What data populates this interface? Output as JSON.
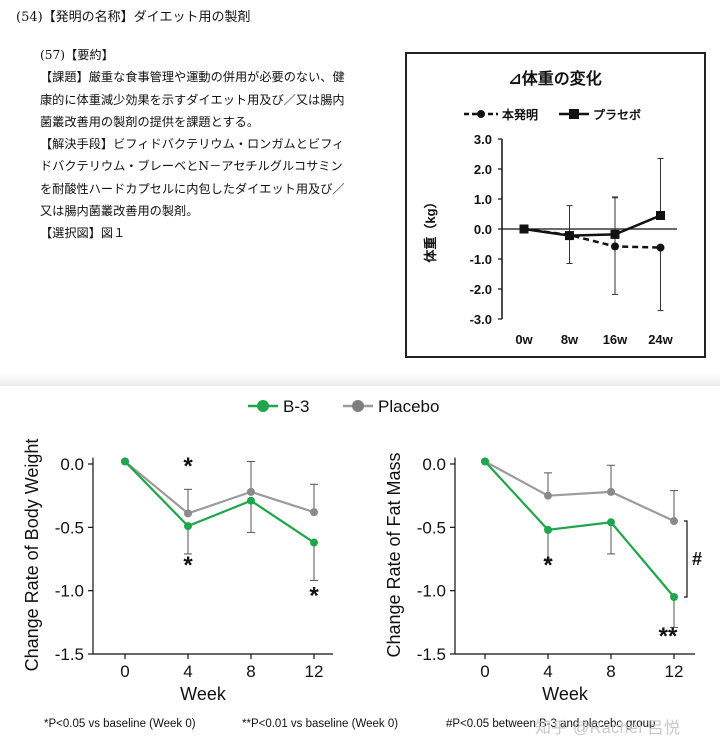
{
  "header": "(54)【発明の名称】ダイエット用の製剤",
  "abstract": {
    "lines": [
      "(57)【要約】",
      "【課題】厳重な食事管理や運動の併用が必要のない、健",
      "康的に体重減少効果を示すダイエット用及び／又は腸内",
      "菌叢改善用の製剤の提供を課題とする。",
      "【解決手段】ビフィドバクテリウム・ロンガムとビフィ",
      "ドバクテリウム・ブレーベとN－アセチルグルコサミン",
      "を耐酸性ハードカプセルに内包したダイエット用及び／",
      "又は腸内菌叢改善用の製剤。",
      "【選択図】図１"
    ]
  },
  "chart_data": [
    {
      "type": "line",
      "title": "⊿体重の変化",
      "ylabel": "体重（kg）",
      "categories": [
        "0w",
        "8w",
        "16w",
        "24w"
      ],
      "ylim": [
        -3.0,
        3.0
      ],
      "yticks": [
        "3.0",
        "2.0",
        "1.0",
        "0.0",
        "-1.0",
        "-2.0",
        "-3.0"
      ],
      "legend": "top",
      "series": [
        {
          "name": "本発明",
          "color": "#111111",
          "marker": "circle",
          "dashed": true,
          "values": [
            0.0,
            -0.2,
            -0.58,
            -0.62
          ],
          "err_low": [
            0,
            0.95,
            1.6,
            2.1
          ],
          "err_high": [
            0,
            0.98,
            1.62,
            0
          ]
        },
        {
          "name": "プラセボ",
          "color": "#111111",
          "marker": "square",
          "dashed": false,
          "values": [
            0.0,
            -0.22,
            -0.18,
            0.45
          ],
          "err_low": [
            0,
            0,
            0,
            0
          ],
          "err_high": [
            0,
            0,
            1.25,
            1.9
          ]
        }
      ]
    },
    {
      "type": "line",
      "xlabel": "Week",
      "ylabel": "Change Rate of Body Weight",
      "categories": [
        "0",
        "4",
        "8",
        "12"
      ],
      "ylim": [
        -1.5,
        0.0
      ],
      "yticks": [
        "0.0",
        "-0.5",
        "-1.0",
        "-1.5"
      ],
      "legend": "top",
      "series": [
        {
          "name": "B-3",
          "color": "#1fa54a",
          "values": [
            0.02,
            -0.49,
            -0.29,
            -0.62
          ],
          "err": [
            0,
            0.22,
            0.25,
            0.3
          ]
        },
        {
          "name": "Placebo",
          "color": "#9b9b9b",
          "values": [
            0.02,
            -0.39,
            -0.22,
            -0.38
          ],
          "err": [
            0,
            0.19,
            0.24,
            0.22
          ]
        }
      ],
      "annotations": [
        {
          "label": "*",
          "x": "4",
          "pos": "above"
        },
        {
          "label": "*",
          "x": "4",
          "pos": "below"
        },
        {
          "label": "*",
          "x": "12",
          "pos": "below"
        }
      ]
    },
    {
      "type": "line",
      "xlabel": "Week",
      "ylabel": "Change Rate of Fat Mass",
      "categories": [
        "0",
        "4",
        "8",
        "12"
      ],
      "ylim": [
        -1.5,
        0.0
      ],
      "yticks": [
        "0.0",
        "-0.5",
        "-1.0",
        "-1.5"
      ],
      "series": [
        {
          "name": "B-3",
          "color": "#1fa54a",
          "values": [
            0.02,
            -0.52,
            -0.46,
            -1.05
          ],
          "err": [
            0,
            0.23,
            0.25,
            0.24
          ]
        },
        {
          "name": "Placebo",
          "color": "#9b9b9b",
          "values": [
            0.02,
            -0.25,
            -0.22,
            -0.45
          ],
          "err": [
            0,
            0.18,
            0.21,
            0.24
          ]
        }
      ],
      "annotations": [
        {
          "label": "*",
          "x": "4",
          "pos": "below"
        },
        {
          "label": "**",
          "x": "12",
          "pos": "below"
        },
        {
          "label": "#",
          "x": "12",
          "pos": "bracket"
        }
      ]
    }
  ],
  "footnotes": {
    "f1": "*P<0.05 vs baseline (Week 0)",
    "f2": "**P<0.01 vs baseline (Week 0)",
    "f3": "#P<0.05 between B-3 and placebo group"
  },
  "watermark": "知乎 @Rachel 吕悦"
}
